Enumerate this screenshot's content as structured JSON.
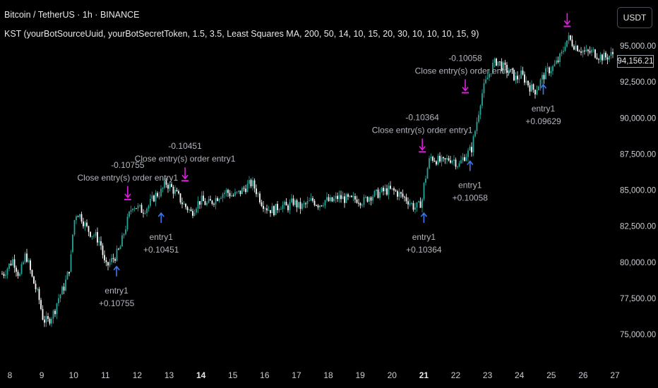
{
  "header": {
    "symbol_line": "Bitcoin / TetherUS · 1h · BINANCE",
    "indicator_line": "KST (yourBotSourceUuid, yourBotSecretToken, 1.5, 3.5, Least Squares MA, 200, 50, 14, 10, 15, 20, 30, 10, 10, 10, 15, 9)"
  },
  "currency_button": "USDT",
  "last_price": "94,156.21",
  "colors": {
    "up": "#26a69a",
    "down": "#ffffff",
    "entry_arrow": "#3b78f0",
    "exit_arrow": "#e01ee0",
    "label_text": "#b2b5be",
    "axis_text": "#c9ccd3"
  },
  "chart_data": {
    "type": "candlestick",
    "x_tick_labels": [
      "8",
      "9",
      "10",
      "11",
      "12",
      "13",
      "14",
      "15",
      "16",
      "17",
      "18",
      "19",
      "20",
      "21",
      "22",
      "23",
      "24",
      "25",
      "26",
      "27"
    ],
    "bold_x_ticks": [
      "14",
      "21"
    ],
    "y_tick_labels": [
      "95,000.00",
      "92,500.00",
      "90,000.00",
      "87,500.00",
      "85,000.00",
      "82,500.00",
      "80,000.00",
      "77,500.00",
      "75,000.00"
    ],
    "ylim": [
      73500,
      96500
    ],
    "xlim": [
      7.8,
      27.2
    ],
    "price_path": [
      [
        7.8,
        79200
      ],
      [
        8.1,
        80200
      ],
      [
        8.3,
        79000
      ],
      [
        8.5,
        80600
      ],
      [
        8.7,
        78900
      ],
      [
        8.9,
        77600
      ],
      [
        9.05,
        76000
      ],
      [
        9.2,
        75900
      ],
      [
        9.4,
        76600
      ],
      [
        9.5,
        77400
      ],
      [
        9.7,
        78300
      ],
      [
        9.9,
        79800
      ],
      [
        10.0,
        82700
      ],
      [
        10.1,
        83500
      ],
      [
        10.25,
        83100
      ],
      [
        10.4,
        82400
      ],
      [
        10.55,
        82000
      ],
      [
        10.7,
        81800
      ],
      [
        10.85,
        81300
      ],
      [
        11.0,
        79600
      ],
      [
        11.15,
        80000
      ],
      [
        11.3,
        80400
      ],
      [
        11.45,
        80900
      ],
      [
        11.6,
        82200
      ],
      [
        11.75,
        83300
      ],
      [
        11.85,
        84000
      ],
      [
        12.0,
        83800
      ],
      [
        12.15,
        83600
      ],
      [
        12.35,
        83900
      ],
      [
        12.55,
        84600
      ],
      [
        12.75,
        84900
      ],
      [
        12.9,
        85500
      ],
      [
        13.1,
        85100
      ],
      [
        13.3,
        84500
      ],
      [
        13.45,
        84000
      ],
      [
        13.6,
        83700
      ],
      [
        13.7,
        83400
      ],
      [
        13.85,
        84000
      ],
      [
        14.0,
        84300
      ],
      [
        14.2,
        84000
      ],
      [
        14.4,
        84300
      ],
      [
        14.6,
        84700
      ],
      [
        14.8,
        84900
      ],
      [
        15.0,
        84600
      ],
      [
        15.2,
        84800
      ],
      [
        15.4,
        85200
      ],
      [
        15.6,
        85500
      ],
      [
        15.75,
        84900
      ],
      [
        15.9,
        84200
      ],
      [
        16.1,
        83700
      ],
      [
        16.3,
        83600
      ],
      [
        16.5,
        84000
      ],
      [
        16.7,
        83800
      ],
      [
        16.9,
        84200
      ],
      [
        17.1,
        83800
      ],
      [
        17.3,
        84000
      ],
      [
        17.5,
        84300
      ],
      [
        17.7,
        84000
      ],
      [
        17.9,
        84300
      ],
      [
        18.1,
        84200
      ],
      [
        18.3,
        84500
      ],
      [
        18.5,
        84400
      ],
      [
        18.7,
        84300
      ],
      [
        18.9,
        84400
      ],
      [
        19.1,
        84200
      ],
      [
        19.3,
        84600
      ],
      [
        19.5,
        84700
      ],
      [
        19.7,
        84900
      ],
      [
        19.9,
        85000
      ],
      [
        20.1,
        84900
      ],
      [
        20.3,
        84600
      ],
      [
        20.5,
        84300
      ],
      [
        20.7,
        83800
      ],
      [
        20.85,
        83900
      ],
      [
        20.95,
        84400
      ],
      [
        21.0,
        85300
      ],
      [
        21.1,
        86400
      ],
      [
        21.2,
        87300
      ],
      [
        21.4,
        87100
      ],
      [
        21.6,
        86900
      ],
      [
        21.8,
        87200
      ],
      [
        21.95,
        87100
      ],
      [
        22.1,
        86700
      ],
      [
        22.25,
        87300
      ],
      [
        22.4,
        87600
      ],
      [
        22.5,
        87900
      ],
      [
        22.6,
        89000
      ],
      [
        22.7,
        90200
      ],
      [
        22.8,
        91500
      ],
      [
        22.9,
        92200
      ],
      [
        23.0,
        92800
      ],
      [
        23.15,
        93600
      ],
      [
        23.3,
        94000
      ],
      [
        23.45,
        93600
      ],
      [
        23.6,
        93300
      ],
      [
        23.75,
        93100
      ],
      [
        23.9,
        92700
      ],
      [
        24.05,
        93000
      ],
      [
        24.2,
        92600
      ],
      [
        24.35,
        92100
      ],
      [
        24.5,
        91900
      ],
      [
        24.6,
        92300
      ],
      [
        24.75,
        92900
      ],
      [
        24.9,
        93300
      ],
      [
        25.05,
        93500
      ],
      [
        25.2,
        93900
      ],
      [
        25.35,
        94500
      ],
      [
        25.45,
        95300
      ],
      [
        25.55,
        95500
      ],
      [
        25.7,
        95100
      ],
      [
        25.9,
        94800
      ],
      [
        26.1,
        94500
      ],
      [
        26.3,
        94600
      ],
      [
        26.5,
        94300
      ],
      [
        26.7,
        94200
      ],
      [
        26.9,
        94400
      ],
      [
        27.05,
        94600
      ],
      [
        27.2,
        94156
      ]
    ],
    "entries": [
      {
        "label": "entry1",
        "value": "+0.10755",
        "x": 11.35,
        "price": 80000
      },
      {
        "label": "entry1",
        "value": "+0.10451",
        "x": 12.75,
        "price": 83700
      },
      {
        "label": "entry1",
        "value": "+0.10364",
        "x": 21.0,
        "price": 83700
      },
      {
        "label": "entry1",
        "value": "+0.10058",
        "x": 22.45,
        "price": 87300
      },
      {
        "label": "entry1",
        "value": "+0.09629",
        "x": 24.75,
        "price": 92600
      }
    ],
    "exits": [
      {
        "label": "Close entry(s) order entry1",
        "value": "-0.10755",
        "x": 11.7,
        "price": 84300
      },
      {
        "label": "Close entry(s) order entry1",
        "value": "-0.10451",
        "x": 13.5,
        "price": 85600
      },
      {
        "label": "Close entry(s) order entry1",
        "value": "-0.10364",
        "x": 20.95,
        "price": 87600
      },
      {
        "label": "Close entry(s) order entry1",
        "value": "-0.10058",
        "x": 22.3,
        "price": 91700
      },
      {
        "label": "",
        "value": "",
        "x": 25.5,
        "price": 96300
      }
    ]
  }
}
